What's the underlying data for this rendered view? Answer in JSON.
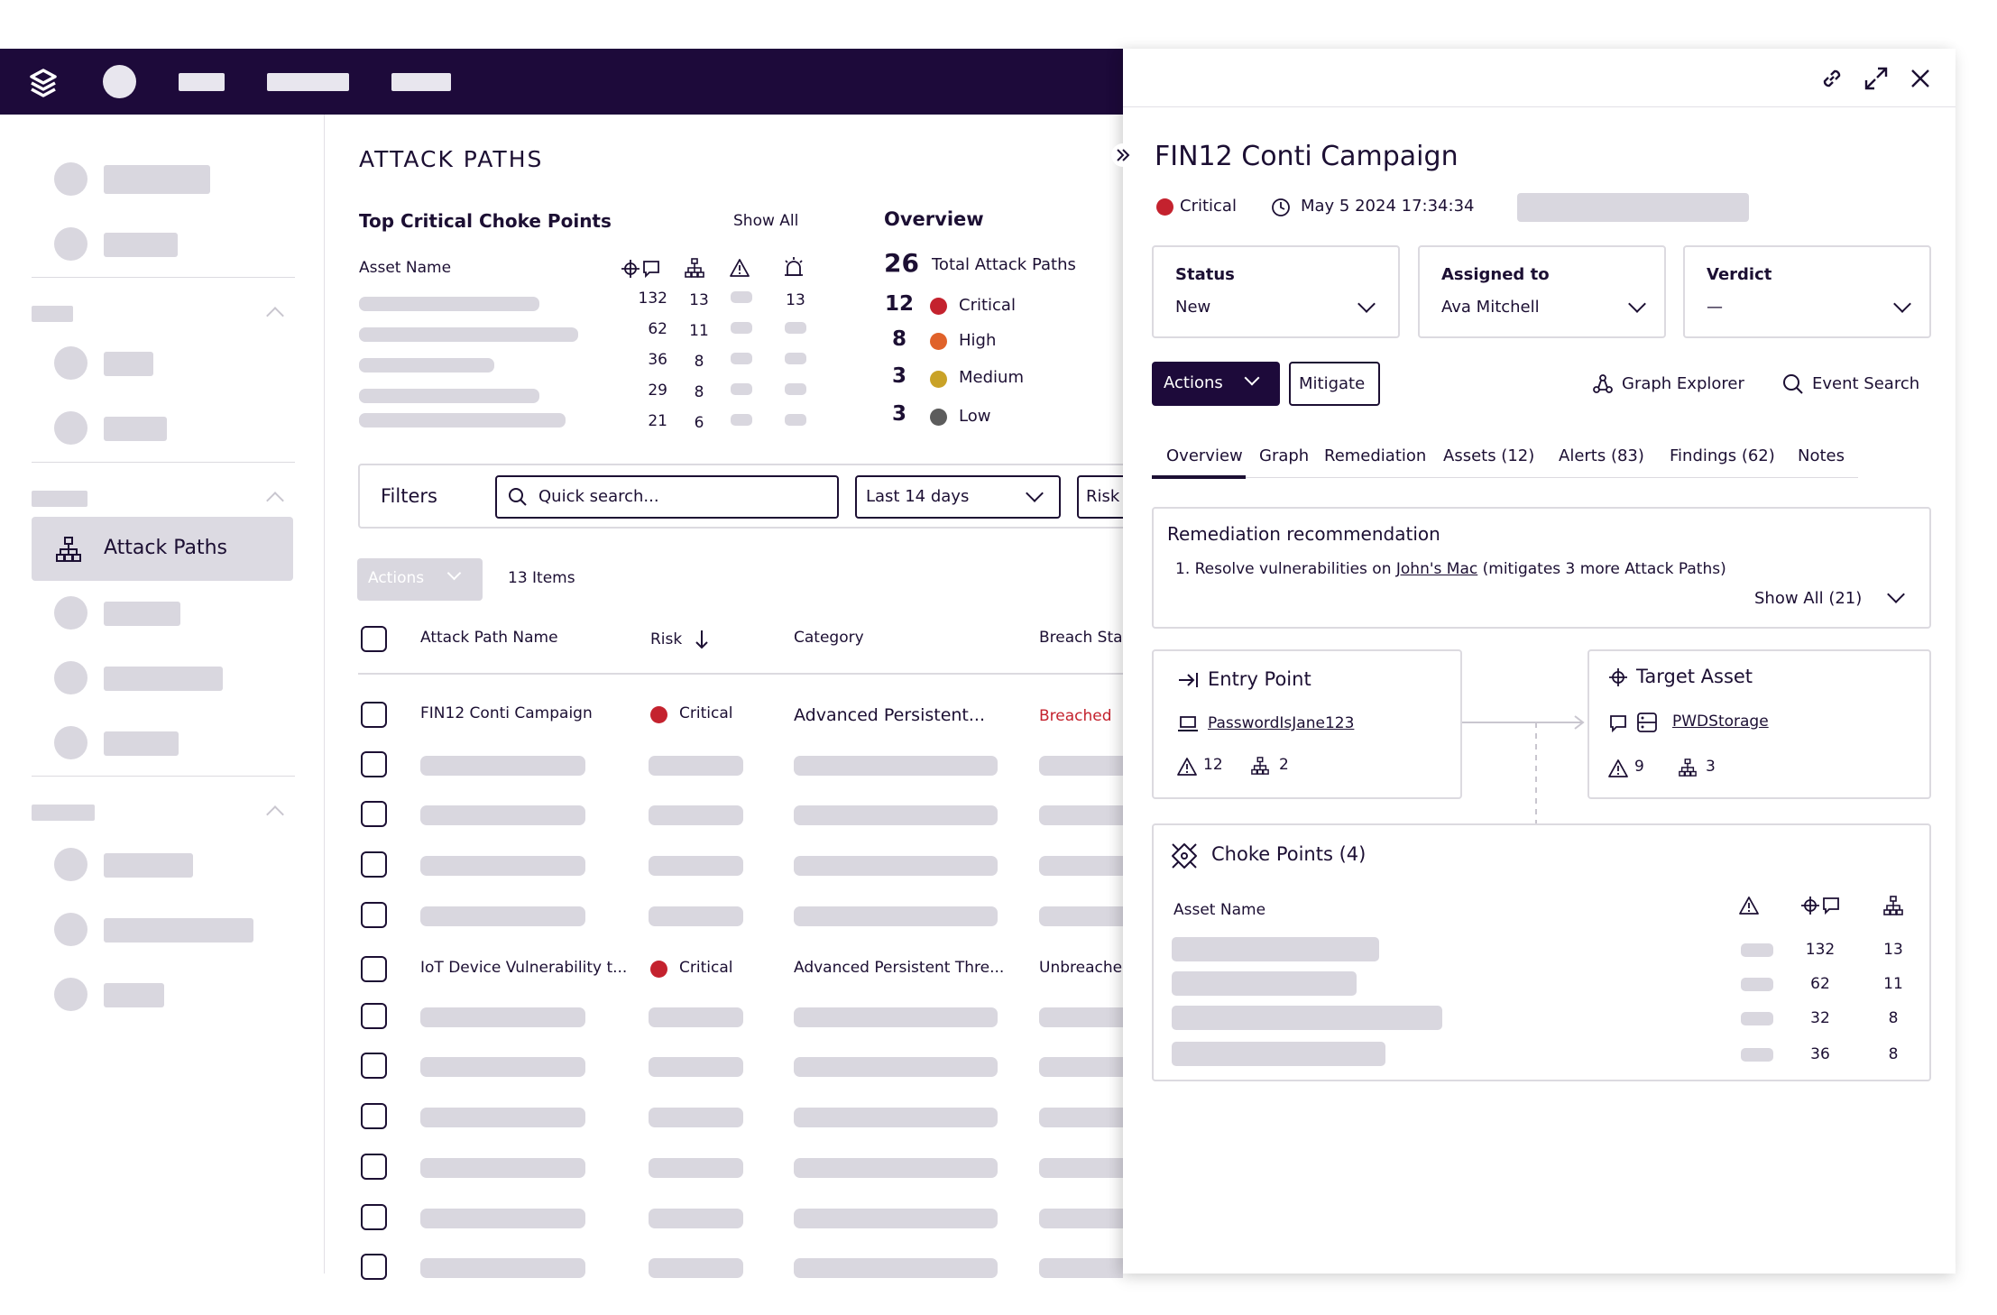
{
  "page": {
    "title": "ATTACK PATHS",
    "choke_points": {
      "title": "Top Critical Choke Points",
      "show_all": "Show All",
      "asset_name_header": "Asset Name",
      "rows": [
        {
          "paths": "132",
          "assets": "13",
          "alerts": "13"
        },
        {
          "paths": "62",
          "assets": "11",
          "alerts": ""
        },
        {
          "paths": "36",
          "assets": "8",
          "alerts": ""
        },
        {
          "paths": "29",
          "assets": "8",
          "alerts": ""
        },
        {
          "paths": "21",
          "assets": "6",
          "alerts": ""
        }
      ]
    },
    "overview": {
      "title": "Overview",
      "total_count": "26",
      "total_label": "Total Attack Paths",
      "items": [
        {
          "count": "12",
          "label": "Critical",
          "color": "#c4222e",
          "icon": "critical-icon"
        },
        {
          "count": "8",
          "label": "High",
          "color": "#e0622a",
          "icon": "high-icon"
        },
        {
          "count": "3",
          "label": "Medium",
          "color": "#c9a227",
          "icon": "medium-icon"
        },
        {
          "count": "3",
          "label": "Low",
          "color": "#5c5c5c",
          "icon": "low-icon"
        }
      ]
    },
    "filters": {
      "label": "Filters",
      "search_placeholder": "Quick search...",
      "date_range": "Last 14 days",
      "risk": "Risk"
    },
    "table": {
      "actions": "Actions",
      "count": "13 Items",
      "headers": {
        "name": "Attack Path Name",
        "risk": "Risk",
        "category": "Category",
        "breach": "Breach Sta"
      },
      "rows": [
        {
          "name": "FIN12 Conti Campaign",
          "risk": "Critical",
          "category": "Advanced Persistent...",
          "breach": "Breached"
        },
        {
          "name": "IoT Device Vulnerability t...",
          "risk": "Critical",
          "category": "Advanced Persistent Thre...",
          "breach": "Unbreache"
        }
      ]
    }
  },
  "sidebar": {
    "active_item": "Attack Paths"
  },
  "panel": {
    "title": "FIN12 Conti Campaign",
    "severity": "Critical",
    "timestamp": "May 5 2024 17:34:34",
    "fields": [
      {
        "label": "Status",
        "value": "New"
      },
      {
        "label": "Assigned to",
        "value": "Ava Mitchell"
      },
      {
        "label": "Verdict",
        "value": "—"
      }
    ],
    "actions_label": "Actions",
    "mitigate_label": "Mitigate",
    "graph_explorer": "Graph Explorer",
    "event_search": "Event Search",
    "tabs": [
      "Overview",
      "Graph",
      "Remediation",
      "Assets (12)",
      "Alerts (83)",
      "Findings (62)",
      "Notes"
    ],
    "remediation": {
      "title": "Remediation recommendation",
      "prefix": "1. Resolve vulnerabilities on ",
      "link": "John's Mac",
      "suffix": " (mitigates 3 more Attack Paths)",
      "show_all": "Show All (21)"
    },
    "entry_point": {
      "title": "Entry Point",
      "asset": "PasswordIsJane123",
      "alerts": "12",
      "assets": "2"
    },
    "target_asset": {
      "title": "Target Asset",
      "asset": "PWDStorage",
      "alerts": "9",
      "assets": "3"
    },
    "choke_points": {
      "title": "Choke Points (4)",
      "asset_name_header": "Asset Name",
      "rows": [
        {
          "paths": "132",
          "assets": "13"
        },
        {
          "paths": "62",
          "assets": "11"
        },
        {
          "paths": "32",
          "assets": "8"
        },
        {
          "paths": "36",
          "assets": "8"
        }
      ]
    }
  },
  "colors": {
    "topbar": "#1d0a3a",
    "accent": "#1c0f33",
    "critical": "#c4222e",
    "breached": "#c4222e",
    "placeholder": "#d9d7df"
  }
}
